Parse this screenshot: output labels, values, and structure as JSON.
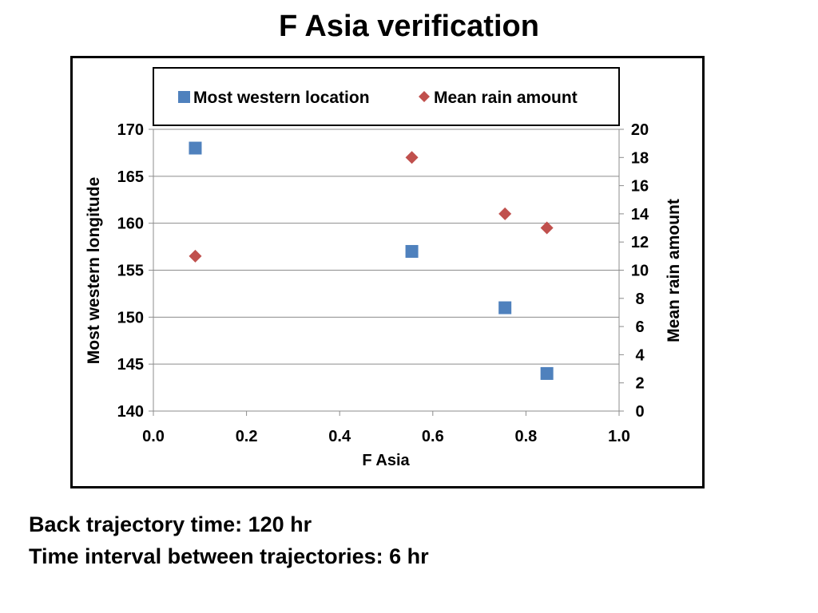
{
  "page": {
    "title": "F Asia verification",
    "captions": [
      "Back trajectory time: 120 hr",
      "Time interval between trajectories: 6 hr"
    ]
  },
  "chart_data": {
    "type": "scatter",
    "xlabel": "F Asia",
    "ylabel": "Most western longitude",
    "y2label": "Mean rain amount",
    "xlim": [
      0.0,
      1.0
    ],
    "ylim": [
      140,
      170
    ],
    "y2lim": [
      0,
      20
    ],
    "x_ticks": [
      "0.0",
      "0.2",
      "0.4",
      "0.6",
      "0.8",
      "1.0"
    ],
    "y_ticks": [
      "140",
      "145",
      "150",
      "155",
      "160",
      "165",
      "170"
    ],
    "y2_ticks": [
      "0",
      "2",
      "4",
      "6",
      "8",
      "10",
      "12",
      "14",
      "16",
      "18",
      "20"
    ],
    "grid": "horizontal",
    "legend_position": "top",
    "series": [
      {
        "name": "Most western location",
        "axis": "left",
        "marker": "square",
        "color": "#4F81BD",
        "points": [
          {
            "x": 0.09,
            "y": 168
          },
          {
            "x": 0.555,
            "y": 157
          },
          {
            "x": 0.755,
            "y": 151
          },
          {
            "x": 0.845,
            "y": 144
          }
        ]
      },
      {
        "name": "Mean rain amount",
        "axis": "right",
        "marker": "diamond",
        "color": "#C0504D",
        "points": [
          {
            "x": 0.09,
            "y": 11
          },
          {
            "x": 0.555,
            "y": 18
          },
          {
            "x": 0.755,
            "y": 14
          },
          {
            "x": 0.845,
            "y": 13
          }
        ]
      }
    ]
  }
}
